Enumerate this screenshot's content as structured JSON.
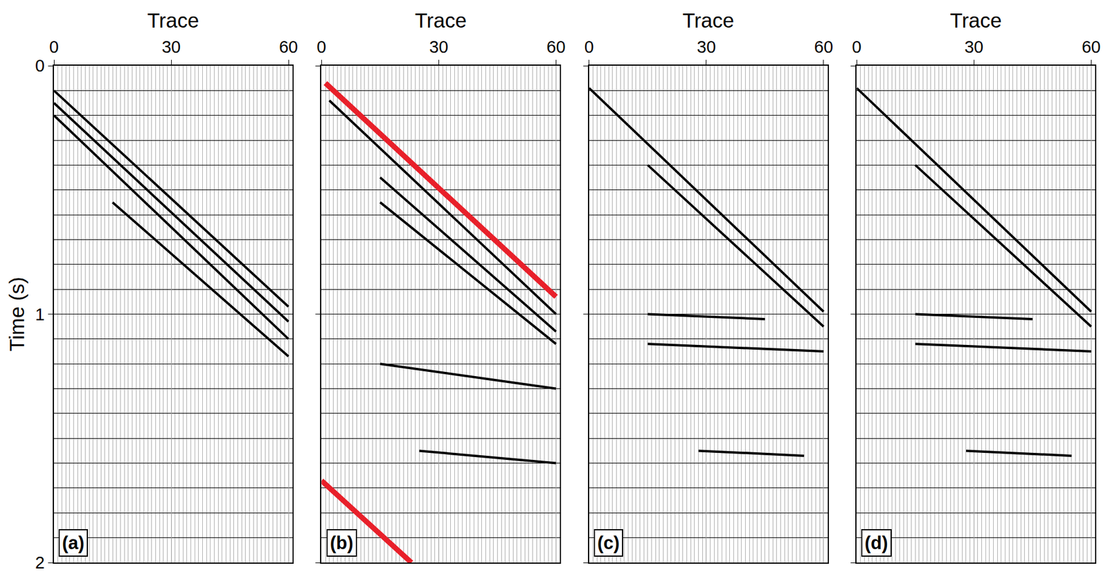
{
  "chart_data": [
    {
      "type": "line",
      "x_label": "Trace",
      "y_label": "Time (s)",
      "annotations": [
        "(a)"
      ],
      "xlim": [
        0,
        61
      ],
      "xticks": [
        0,
        30,
        60
      ],
      "ylim": [
        0,
        2
      ],
      "yticks": [
        0,
        1,
        2
      ],
      "grid": true,
      "series": [
        {
          "color": "#000000",
          "x": [
            0,
            60
          ],
          "values": [
            0.1,
            0.97
          ]
        },
        {
          "color": "#000000",
          "x": [
            0,
            60
          ],
          "values": [
            0.15,
            1.03
          ]
        },
        {
          "color": "#000000",
          "x": [
            0,
            60
          ],
          "values": [
            0.2,
            1.1
          ]
        },
        {
          "color": "#000000",
          "x": [
            15,
            60
          ],
          "values": [
            0.55,
            1.17
          ]
        }
      ]
    },
    {
      "type": "line",
      "x_label": "Trace",
      "annotations": [
        "(b)"
      ],
      "tick_labels": "x",
      "xlim": [
        0,
        61
      ],
      "xticks": [
        0,
        30,
        60
      ],
      "ylim": [
        0,
        2
      ],
      "yticks": [
        0,
        1,
        2
      ],
      "grid": true,
      "series": [
        {
          "color": "#000000",
          "x": [
            2,
            60
          ],
          "values": [
            0.14,
            1.0
          ]
        },
        {
          "color": "#000000",
          "x": [
            15,
            60
          ],
          "values": [
            0.45,
            1.07
          ]
        },
        {
          "color": "#000000",
          "x": [
            15,
            60
          ],
          "values": [
            0.55,
            1.12
          ]
        },
        {
          "color": "#000000",
          "x": [
            15,
            60
          ],
          "values": [
            1.2,
            1.3
          ]
        },
        {
          "color": "#000000",
          "x": [
            25,
            60
          ],
          "values": [
            1.55,
            1.6
          ]
        },
        {
          "color": "#e8202a",
          "x": [
            1,
            60
          ],
          "values": [
            0.07,
            0.93
          ]
        },
        {
          "color": "#e8202a",
          "x": [
            0,
            23
          ],
          "values": [
            1.67,
            2.0
          ]
        }
      ]
    },
    {
      "type": "line",
      "x_label": "Trace",
      "annotations": [
        "(c)"
      ],
      "tick_labels": "x",
      "xlim": [
        0,
        61
      ],
      "xticks": [
        0,
        30,
        60
      ],
      "ylim": [
        0,
        2
      ],
      "yticks": [
        0,
        1,
        2
      ],
      "grid": true,
      "series": [
        {
          "color": "#000000",
          "x": [
            0,
            60
          ],
          "values": [
            0.09,
            0.99
          ]
        },
        {
          "color": "#000000",
          "x": [
            15,
            60
          ],
          "values": [
            0.4,
            1.05
          ]
        },
        {
          "color": "#000000",
          "x": [
            15,
            45
          ],
          "values": [
            1.0,
            1.02
          ]
        },
        {
          "color": "#000000",
          "x": [
            15,
            60
          ],
          "values": [
            1.12,
            1.15
          ]
        },
        {
          "color": "#000000",
          "x": [
            28,
            55
          ],
          "values": [
            1.55,
            1.57
          ]
        }
      ]
    },
    {
      "type": "line",
      "x_label": "Trace",
      "annotations": [
        "(d)"
      ],
      "tick_labels": "x",
      "xlim": [
        0,
        61
      ],
      "xticks": [
        0,
        30,
        60
      ],
      "ylim": [
        0,
        2
      ],
      "yticks": [
        0,
        1,
        2
      ],
      "grid": true,
      "series": [
        {
          "color": "#000000",
          "x": [
            0,
            60
          ],
          "values": [
            0.09,
            0.99
          ]
        },
        {
          "color": "#000000",
          "x": [
            15,
            60
          ],
          "values": [
            0.4,
            1.05
          ]
        },
        {
          "color": "#000000",
          "x": [
            15,
            45
          ],
          "values": [
            1.0,
            1.02
          ]
        },
        {
          "color": "#000000",
          "x": [
            15,
            60
          ],
          "values": [
            1.12,
            1.15
          ]
        },
        {
          "color": "#000000",
          "x": [
            28,
            55
          ],
          "values": [
            1.55,
            1.57
          ]
        }
      ]
    }
  ]
}
